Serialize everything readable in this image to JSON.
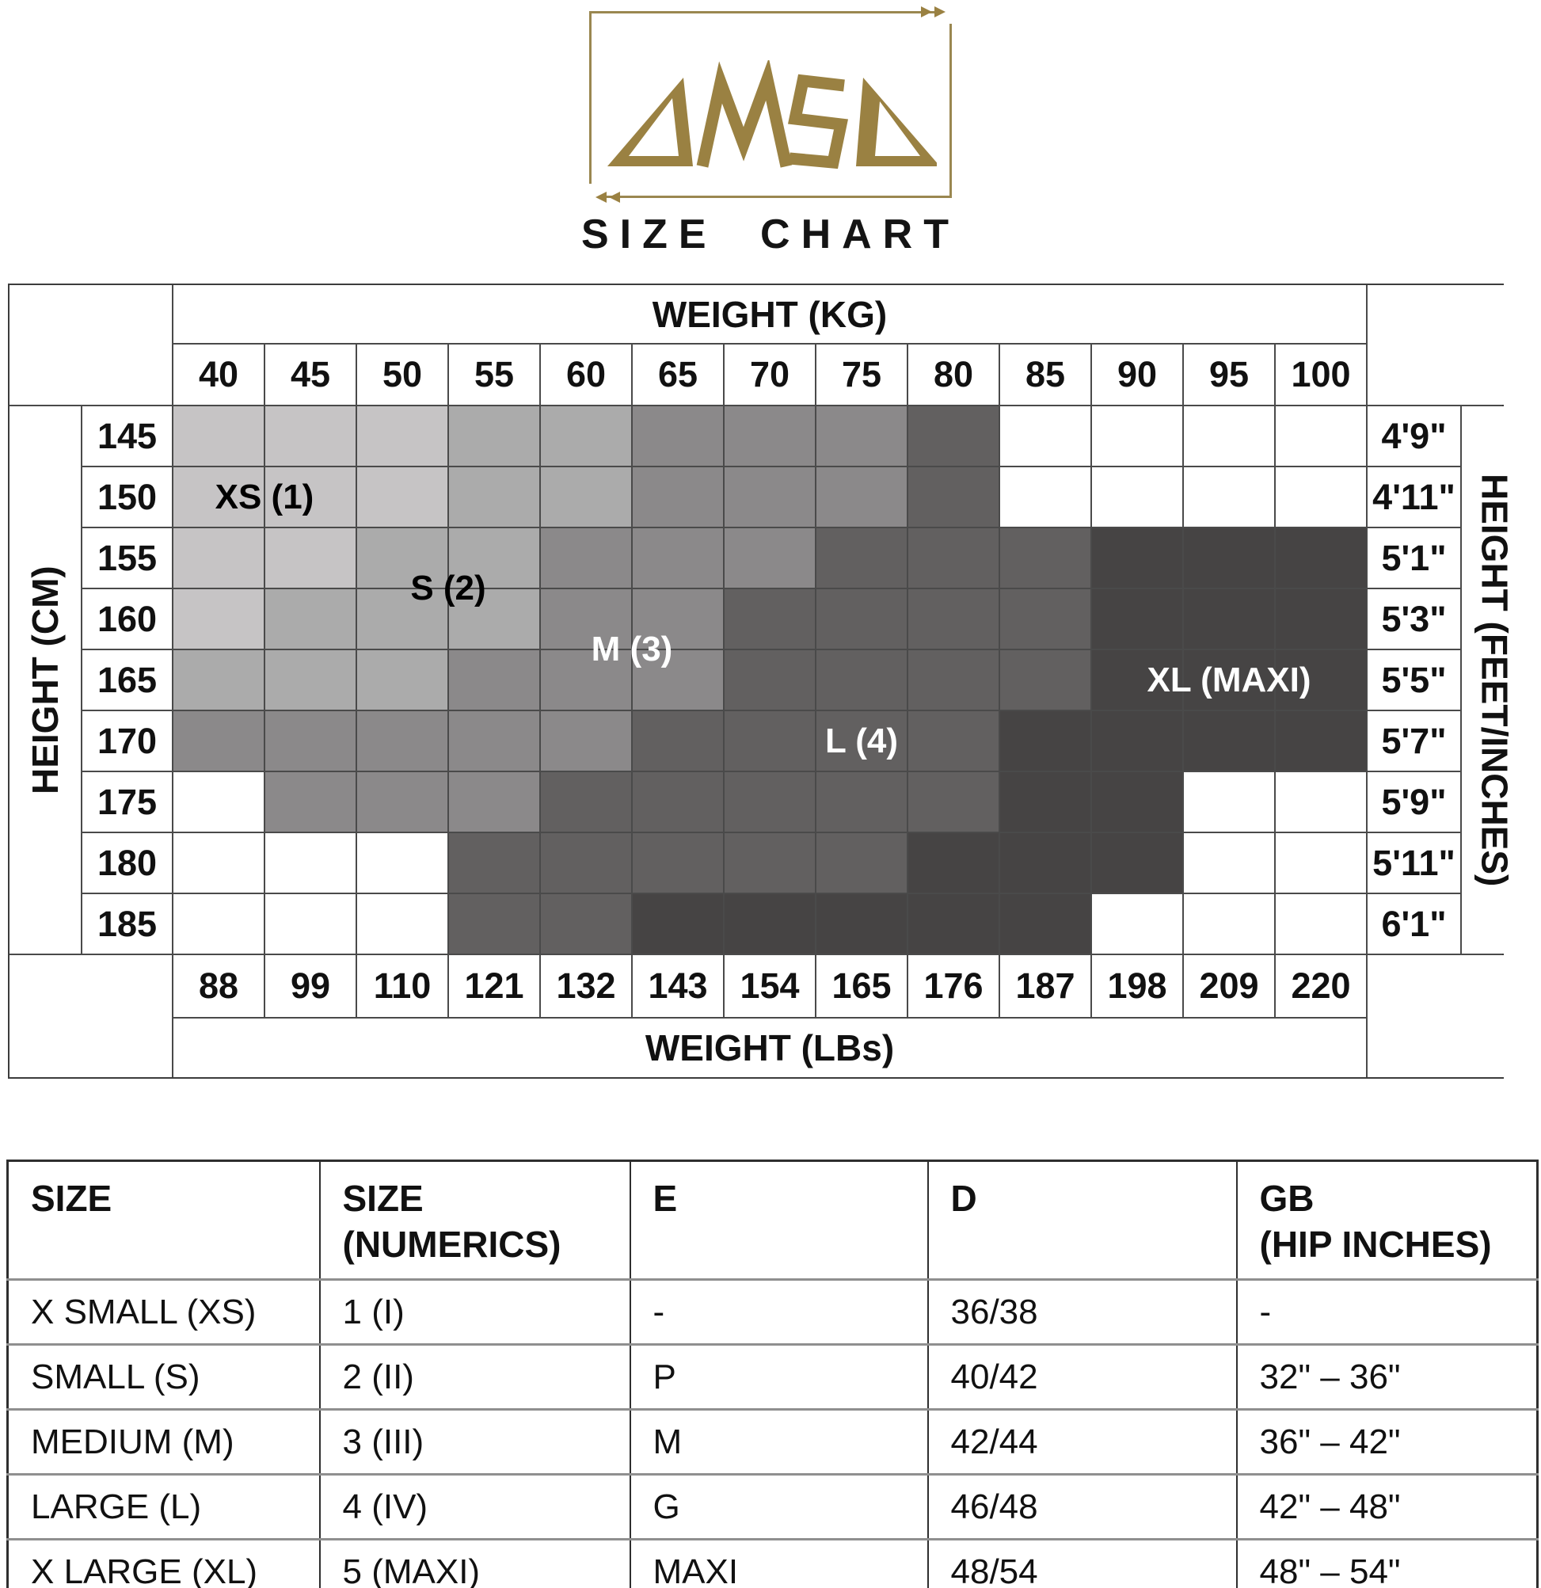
{
  "logo": {
    "brand": "OMSA"
  },
  "title": "SIZE CHART",
  "colors": {
    "brand_gold": "#9a8142",
    "grid_line": "#4a4a4a",
    "table_line_dark": "#2e2e2e",
    "table_line_gray": "#8f8f8f"
  },
  "grid": {
    "weight_kg_label": "WEIGHT (KG)",
    "weight_lbs_label": "WEIGHT (LBs)",
    "height_cm_label": "HEIGHT (CM)",
    "height_ftin_label": "HEIGHT (FEET/INCHES)",
    "kg": [
      "40",
      "45",
      "50",
      "55",
      "60",
      "65",
      "70",
      "75",
      "80",
      "85",
      "90",
      "95",
      "100"
    ],
    "lbs": [
      "88",
      "99",
      "110",
      "121",
      "132",
      "143",
      "154",
      "165",
      "176",
      "187",
      "198",
      "209",
      "220"
    ],
    "cm": [
      "145",
      "150",
      "155",
      "160",
      "165",
      "170",
      "175",
      "180",
      "185"
    ],
    "ftin": [
      "4'9\"",
      "4'11\"",
      "5'1\"",
      "5'3\"",
      "5'5\"",
      "5'7\"",
      "5'9\"",
      "5'11\"",
      "6'1\""
    ],
    "region_colors": {
      "0": "#ffffff",
      "1": "#c6c4c5",
      "2": "#ababab",
      "3": "#8b898a",
      "4": "#626060",
      "5": "#464444"
    },
    "region_codes": [
      [
        1,
        1,
        1,
        2,
        2,
        3,
        3,
        3,
        4,
        0,
        0,
        0,
        0
      ],
      [
        1,
        1,
        1,
        2,
        2,
        3,
        3,
        3,
        4,
        0,
        0,
        0,
        0
      ],
      [
        1,
        1,
        2,
        2,
        3,
        3,
        3,
        4,
        4,
        4,
        5,
        5,
        5
      ],
      [
        1,
        2,
        2,
        2,
        3,
        3,
        4,
        4,
        4,
        4,
        5,
        5,
        5
      ],
      [
        2,
        2,
        2,
        3,
        3,
        3,
        4,
        4,
        4,
        4,
        5,
        5,
        5
      ],
      [
        3,
        3,
        3,
        3,
        3,
        4,
        4,
        4,
        4,
        5,
        5,
        5,
        5
      ],
      [
        0,
        3,
        3,
        3,
        4,
        4,
        4,
        4,
        4,
        5,
        5,
        0,
        0
      ],
      [
        0,
        0,
        0,
        4,
        4,
        4,
        4,
        4,
        5,
        5,
        5,
        0,
        0
      ],
      [
        0,
        0,
        0,
        4,
        4,
        5,
        5,
        5,
        5,
        5,
        0,
        0,
        0
      ]
    ],
    "labels": [
      {
        "text": "XS (1)",
        "text_color": "#000000",
        "col": 1,
        "colspan": 2,
        "row": 2,
        "rowspan": 1
      },
      {
        "text": "S (2)",
        "text_color": "#000000",
        "col": 3,
        "colspan": 2,
        "row": 3,
        "rowspan": 2
      },
      {
        "text": "M (3)",
        "text_color": "#ffffff",
        "col": 5,
        "colspan": 2,
        "row": 4,
        "rowspan": 2
      },
      {
        "text": "L (4)",
        "text_color": "#ffffff",
        "col": 8,
        "colspan": 1,
        "row": 6,
        "rowspan": 1
      },
      {
        "text": "XL (MAXI)",
        "text_color": "#ffffff",
        "col": 11,
        "colspan": 3,
        "row": 5,
        "rowspan": 1
      }
    ]
  },
  "conversion_table": {
    "headers": [
      {
        "line1": "SIZE",
        "line2": ""
      },
      {
        "line1": "SIZE",
        "line2": "(NUMERICS)"
      },
      {
        "line1": "E",
        "line2": ""
      },
      {
        "line1": "D",
        "line2": ""
      },
      {
        "line1": "GB",
        "line2": "(HIP INCHES)"
      }
    ],
    "rows": [
      [
        "X SMALL (XS)",
        "1 (I)",
        "-",
        "36/38",
        "-"
      ],
      [
        "SMALL (S)",
        "2 (II)",
        "P",
        "40/42",
        "32\" – 36\""
      ],
      [
        "MEDIUM (M)",
        "3 (III)",
        "M",
        "42/44",
        "36\" – 42\""
      ],
      [
        "LARGE (L)",
        "4 (IV)",
        "G",
        "46/48",
        "42\" – 48\""
      ],
      [
        "X LARGE (XL)",
        "5 (MAXI)",
        "MAXI",
        "48/54",
        "48\" – 54\""
      ]
    ]
  },
  "chart_data": [
    {
      "type": "heatmap",
      "title": "OMSA size chart: recommended hosiery size by height and weight",
      "xlabel": "WEIGHT (KG)",
      "x2label": "WEIGHT (LBs)",
      "ylabel": "HEIGHT (CM)",
      "y2label": "HEIGHT (FEET/INCHES)",
      "x": [
        40,
        45,
        50,
        55,
        60,
        65,
        70,
        75,
        80,
        85,
        90,
        95,
        100
      ],
      "x2": [
        88,
        99,
        110,
        121,
        132,
        143,
        154,
        165,
        176,
        187,
        198,
        209,
        220
      ],
      "y": [
        145,
        150,
        155,
        160,
        165,
        170,
        175,
        180,
        185
      ],
      "y2": [
        "4'9\"",
        "4'11\"",
        "5'1\"",
        "5'3\"",
        "5'5\"",
        "5'7\"",
        "5'9\"",
        "5'11\"",
        "6'1\""
      ],
      "legend": [
        "XS (1)",
        "S (2)",
        "M (3)",
        "L (4)",
        "XL (MAXI)"
      ],
      "matrix": [
        [
          "XS",
          "XS",
          "XS",
          "S",
          "S",
          "M",
          "M",
          "M",
          "L",
          "",
          "",
          "",
          ""
        ],
        [
          "XS",
          "XS",
          "XS",
          "S",
          "S",
          "M",
          "M",
          "M",
          "L",
          "",
          "",
          "",
          ""
        ],
        [
          "XS",
          "XS",
          "S",
          "S",
          "M",
          "M",
          "M",
          "L",
          "L",
          "L",
          "XL",
          "XL",
          "XL"
        ],
        [
          "XS",
          "S",
          "S",
          "S",
          "M",
          "M",
          "L",
          "L",
          "L",
          "L",
          "XL",
          "XL",
          "XL"
        ],
        [
          "S",
          "S",
          "S",
          "M",
          "M",
          "M",
          "L",
          "L",
          "L",
          "L",
          "XL",
          "XL",
          "XL"
        ],
        [
          "M",
          "M",
          "M",
          "M",
          "M",
          "L",
          "L",
          "L",
          "L",
          "XL",
          "XL",
          "XL",
          "XL"
        ],
        [
          "",
          "M",
          "M",
          "M",
          "L",
          "L",
          "L",
          "L",
          "L",
          "XL",
          "XL",
          "",
          ""
        ],
        [
          "",
          "",
          "",
          "L",
          "L",
          "L",
          "L",
          "L",
          "XL",
          "XL",
          "XL",
          "",
          ""
        ],
        [
          "",
          "",
          "",
          "L",
          "L",
          "XL",
          "XL",
          "XL",
          "XL",
          "XL",
          "",
          "",
          ""
        ]
      ]
    },
    {
      "type": "table",
      "columns": [
        "SIZE",
        "SIZE (NUMERICS)",
        "E",
        "D",
        "GB (HIP INCHES)"
      ],
      "rows": [
        [
          "X SMALL (XS)",
          "1 (I)",
          "-",
          "36/38",
          "-"
        ],
        [
          "SMALL (S)",
          "2 (II)",
          "P",
          "40/42",
          "32\" – 36\""
        ],
        [
          "MEDIUM (M)",
          "3 (III)",
          "M",
          "42/44",
          "36\" – 42\""
        ],
        [
          "LARGE (L)",
          "4 (IV)",
          "G",
          "46/48",
          "42\" – 48\""
        ],
        [
          "X LARGE (XL)",
          "5 (MAXI)",
          "MAXI",
          "48/54",
          "48\" – 54\""
        ]
      ]
    }
  ]
}
